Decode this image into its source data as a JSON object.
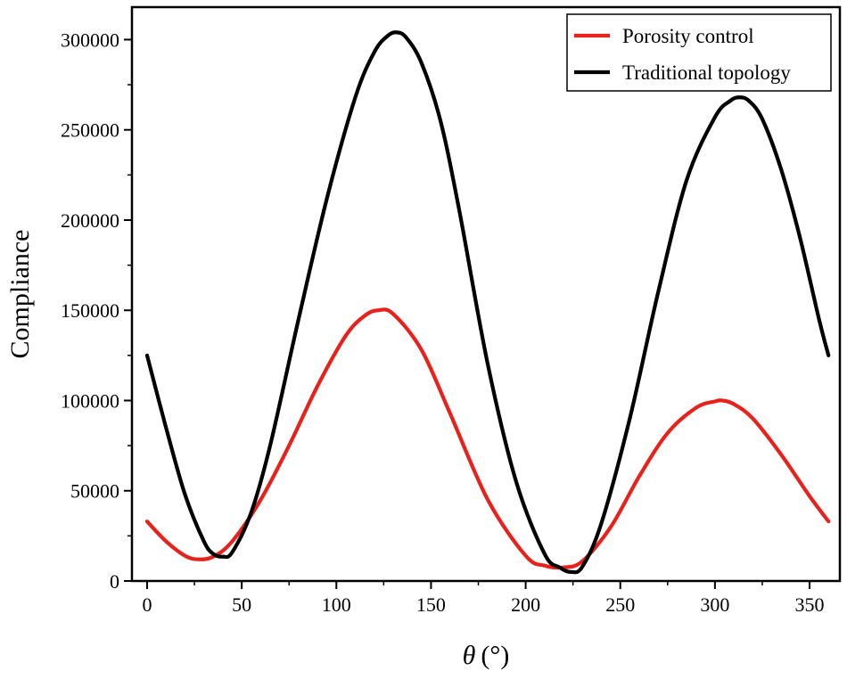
{
  "chart_data": {
    "type": "line",
    "title": "",
    "xlabel_symbol": "θ",
    "xlabel_unit": "(°)",
    "ylabel": "Compliance",
    "xlim": [
      -8,
      366
    ],
    "ylim": [
      0,
      318000
    ],
    "xticks": [
      0,
      50,
      100,
      150,
      200,
      250,
      300,
      350
    ],
    "yticks": [
      0,
      50000,
      100000,
      150000,
      200000,
      250000,
      300000
    ],
    "xtick_labels": [
      "0",
      "50",
      "100",
      "150",
      "200",
      "250",
      "300",
      "350"
    ],
    "ytick_labels": [
      "0",
      "50000",
      "100000",
      "150000",
      "200000",
      "250000",
      "300000"
    ],
    "legend_position": "top-right",
    "series": [
      {
        "name": "Porosity control",
        "color": "#e8211b",
        "x": [
          0,
          10,
          20,
          27,
          35,
          45,
          60,
          75,
          90,
          105,
          115,
          122,
          130,
          145,
          160,
          180,
          200,
          210,
          220,
          230,
          245,
          260,
          275,
          290,
          300,
          304,
          310,
          320,
          335,
          350,
          360
        ],
        "y": [
          33000,
          22000,
          14000,
          12000,
          13500,
          22000,
          45000,
          75000,
          108000,
          136000,
          147000,
          150000,
          148000,
          128000,
          93000,
          45000,
          14000,
          8500,
          7500,
          11000,
          30000,
          58000,
          82000,
          96000,
          99500,
          100000,
          98000,
          90000,
          70000,
          47000,
          33000
        ]
      },
      {
        "name": "Traditional topology",
        "color": "#000000",
        "x": [
          0,
          10,
          20,
          30,
          35,
          40,
          45,
          55,
          65,
          80,
          95,
          110,
          120,
          127,
          132,
          137,
          145,
          155,
          165,
          180,
          195,
          210,
          218,
          224,
          230,
          240,
          255,
          270,
          285,
          300,
          308,
          313,
          318,
          325,
          335,
          345,
          355,
          360
        ],
        "y": [
          125000,
          85000,
          48000,
          22000,
          15000,
          13500,
          16000,
          38000,
          75000,
          145000,
          212000,
          268000,
          293000,
          302000,
          304000,
          301000,
          287000,
          255000,
          205000,
          120000,
          55000,
          15000,
          7500,
          5000,
          8000,
          32000,
          90000,
          160000,
          222000,
          257000,
          266000,
          268000,
          266000,
          256000,
          228000,
          190000,
          145000,
          125000
        ]
      }
    ]
  }
}
